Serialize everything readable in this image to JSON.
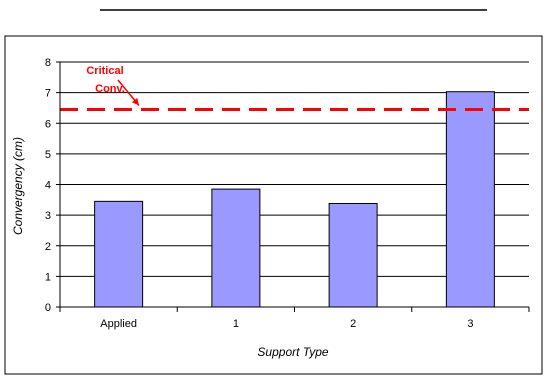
{
  "chart_data": {
    "type": "bar",
    "title": "",
    "xlabel": "Support Type",
    "ylabel": "Convergency (cm)",
    "categories": [
      "Applied",
      "1",
      "2",
      "3"
    ],
    "values": [
      3.45,
      3.85,
      3.38,
      7.03
    ],
    "ylim": [
      0,
      8
    ],
    "yticks": [
      0,
      1,
      2,
      3,
      4,
      5,
      6,
      7,
      8
    ],
    "grid": "horizontal",
    "bar_color": "#9999ff",
    "reference_line": {
      "value": 6.45,
      "label": "Critical Conv.",
      "label_line1": "Critical",
      "label_line2": "Conv.",
      "color": "#ff0000",
      "style": "dashed"
    }
  }
}
